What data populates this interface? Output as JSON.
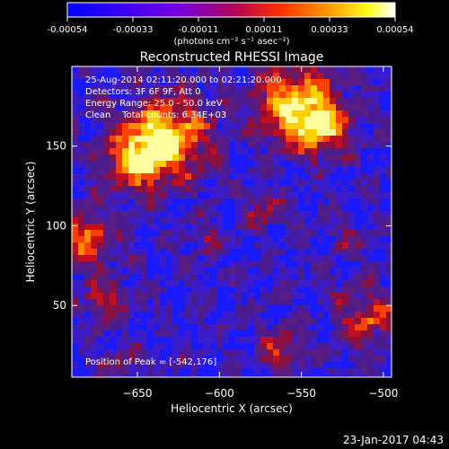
{
  "title": "Reconstructed RHESSI Image",
  "colorbar": {
    "tick_labels": [
      "-0.00054",
      "-0.00033",
      "-0.00011",
      "0.00011",
      "0.00033",
      "0.00054"
    ],
    "unit": "(photons cm⁻² s⁻¹ asec⁻²)"
  },
  "info": {
    "time_range": "25-Aug-2014 02:11:20.000 to 02:21:20.000",
    "detectors": "Detectors: 3F 6F 9F, Att 0",
    "energy": "Energy Range: 25.0 - 50.0 keV",
    "clean": "Clean    Total counts: 6.34E+03",
    "peak": "Position of Peak = [-542,176]"
  },
  "axes": {
    "xlabel": "Heliocentric X (arcsec)",
    "ylabel": "Heliocentric Y (arcsec)",
    "xticks": [
      -650,
      -600,
      -550,
      -500
    ],
    "yticks": [
      50,
      100,
      150
    ],
    "xlim": [
      -690,
      -495
    ],
    "ylim": [
      5,
      200
    ]
  },
  "timestamp": "23-Jan-2017 04:43",
  "colors": {
    "background": "#000000",
    "map_base": "#4a1c90",
    "colormap": [
      "#0000ff",
      "#6a00e0",
      "#d01030",
      "#ff7a00",
      "#ffff00",
      "#ffffff"
    ]
  }
}
